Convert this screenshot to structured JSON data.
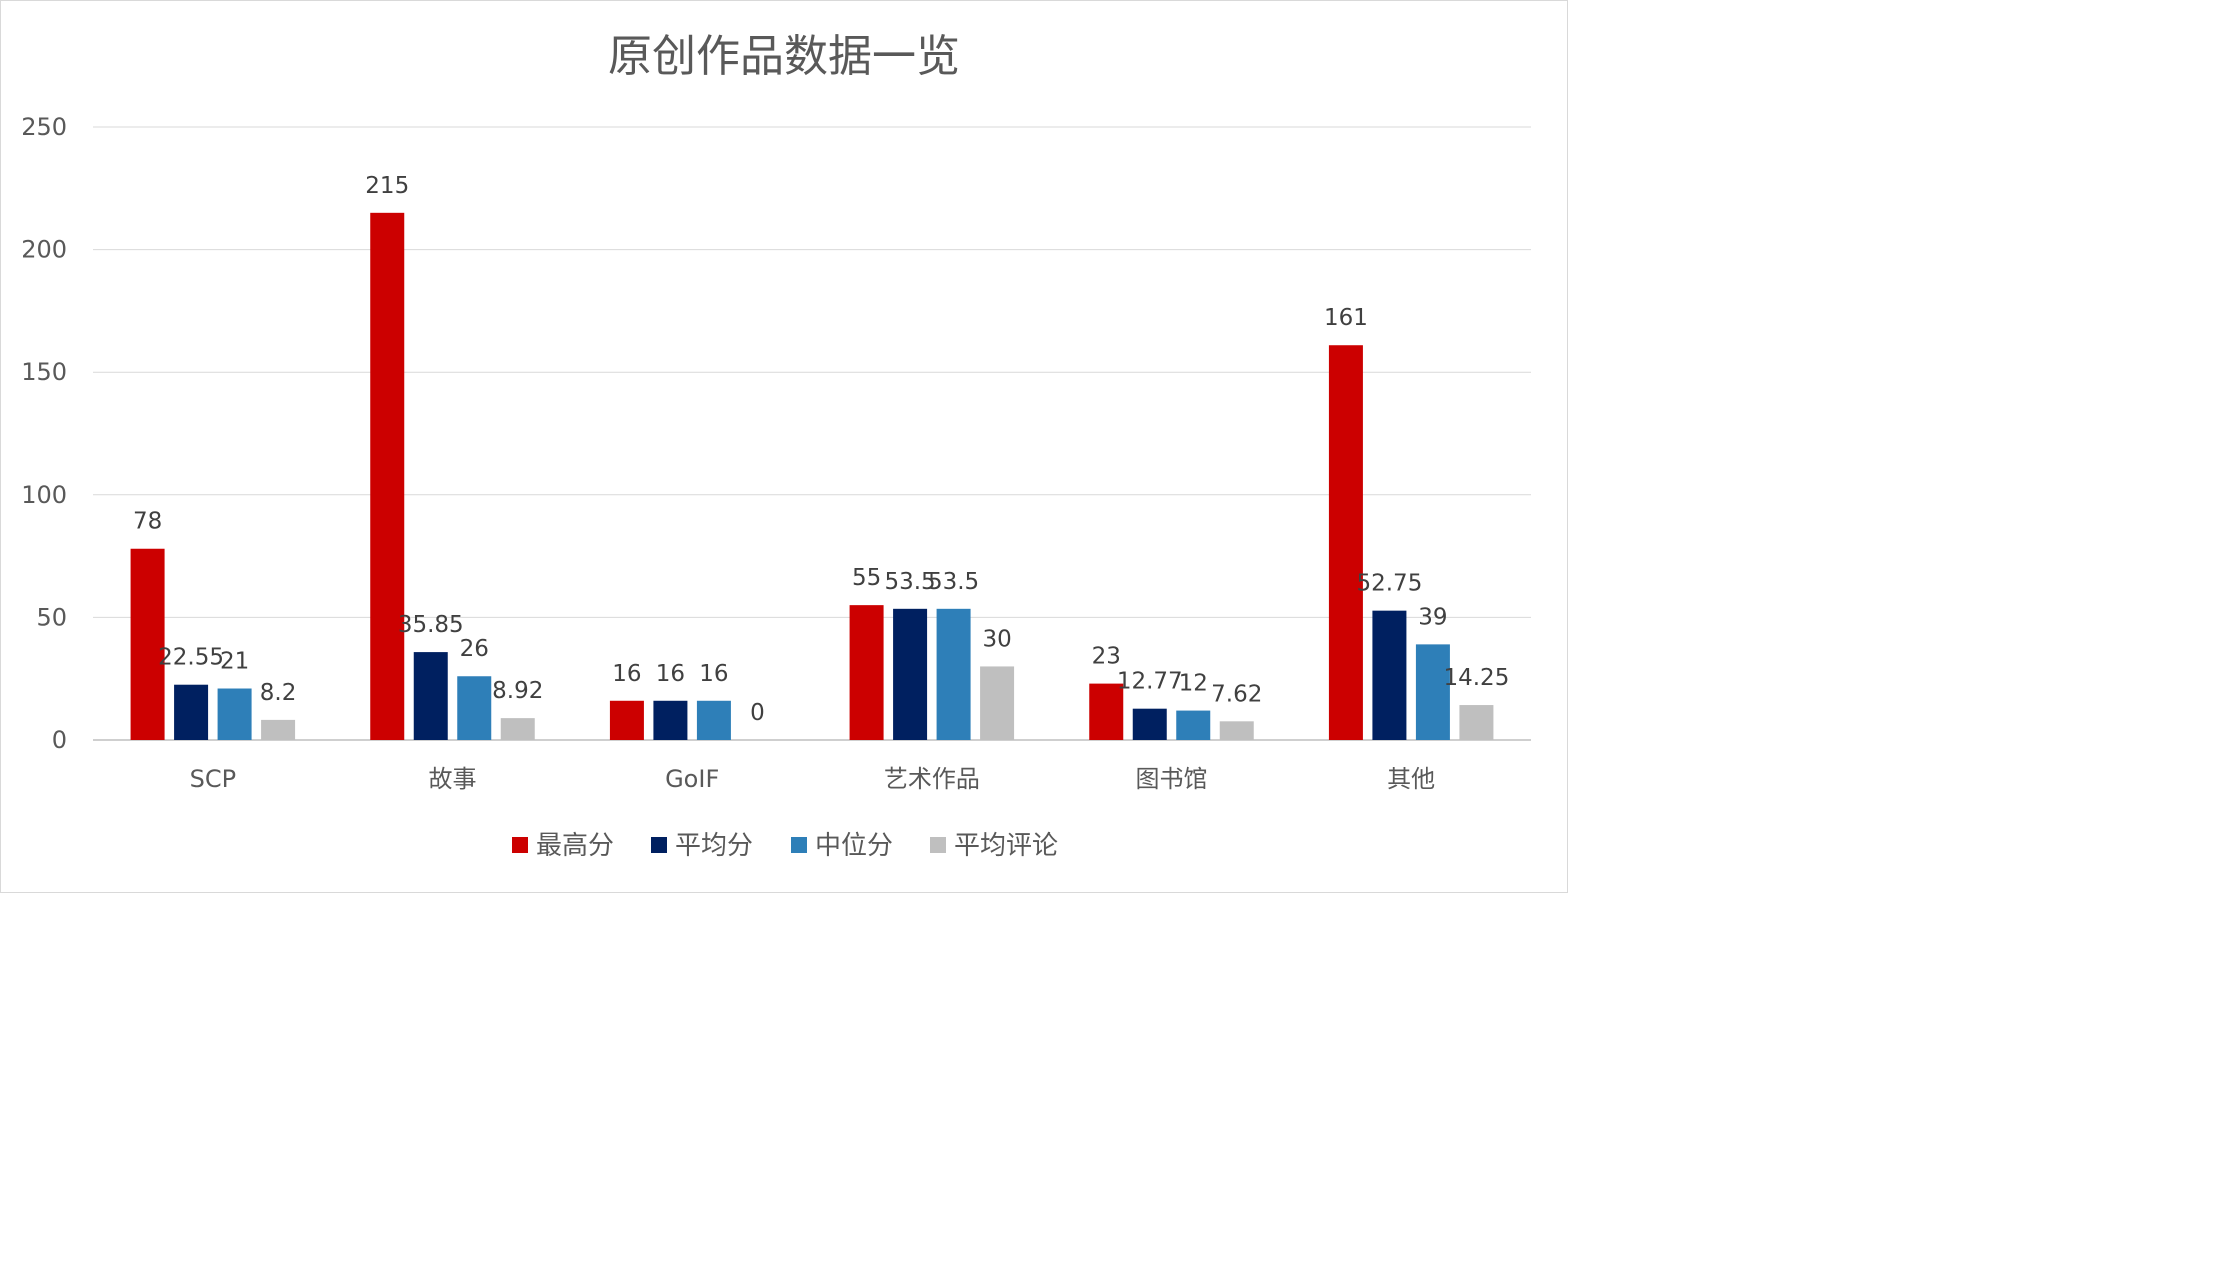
{
  "chart_data": {
    "type": "bar",
    "title": "原创作品数据一览",
    "xlabel": "",
    "ylabel": "",
    "ylim": [
      0,
      250
    ],
    "yticks": [
      0,
      50,
      100,
      150,
      200,
      250
    ],
    "categories": [
      "SCP",
      "故事",
      "GoIF",
      "艺术作品",
      "图书馆",
      "其他"
    ],
    "series": [
      {
        "name": "最高分",
        "color": "#cc0000",
        "values": [
          78,
          215,
          16,
          55,
          23,
          161
        ],
        "labels": [
          "78",
          "215",
          "16",
          "55",
          "23",
          "161"
        ]
      },
      {
        "name": "平均分",
        "color": "#002060",
        "values": [
          22.55,
          35.85,
          16,
          53.5,
          12.77,
          52.75
        ],
        "labels": [
          "22.55",
          "35.85",
          "16",
          "53.5",
          "12.77",
          "52.75"
        ]
      },
      {
        "name": "中位分",
        "color": "#2e7fb8",
        "values": [
          21,
          26,
          16,
          53.5,
          12,
          39
        ],
        "labels": [
          "21",
          "26",
          "16",
          "53.5",
          "12",
          "39"
        ]
      },
      {
        "name": "平均评论",
        "color": "#bfbfbf",
        "values": [
          8.2,
          8.92,
          0,
          30,
          7.62,
          14.25
        ],
        "labels": [
          "8.2",
          "8.92",
          "0",
          "30",
          "7.62",
          "14.25"
        ]
      }
    ],
    "grid": true,
    "legend_position": "bottom"
  }
}
